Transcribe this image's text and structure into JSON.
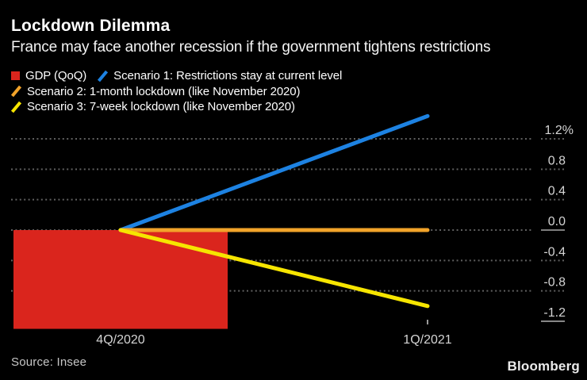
{
  "header": {
    "title": "Lockdown Dilemma",
    "subtitle": "France may face another recession if the government tightens restrictions"
  },
  "legend": [
    {
      "label": "GDP (QoQ)",
      "marker": "square-icon",
      "color": "#da251d",
      "row": 1
    },
    {
      "label": "Scenario 1: Restrictions stay at current level",
      "marker": "slash-icon",
      "color": "#1d82e2",
      "row": 1
    },
    {
      "label": "Scenario 2: 1-month lockdown (like November 2020)",
      "marker": "slash-icon",
      "color": "#f2a32a",
      "row": 2
    },
    {
      "label": "Scenario 3: 7-week lockdown (like November 2020)",
      "marker": "slash-icon",
      "color": "#f6e500",
      "row": 3
    }
  ],
  "chart_data": {
    "type": "bar+line",
    "title": "Lockdown Dilemma",
    "subtitle": "France may face another recession if the government tightens restrictions",
    "categories": [
      "4Q/2020",
      "1Q/2021"
    ],
    "x_tick_marks": [
      false,
      true
    ],
    "bar_series": {
      "name": "GDP (QoQ)",
      "color": "#da251d",
      "values": [
        -1.3,
        null
      ]
    },
    "line_series": [
      {
        "name": "Scenario 1: Restrictions stay at current level",
        "color": "#1d82e2",
        "values": [
          0,
          1.5
        ]
      },
      {
        "name": "Scenario 2: 1-month lockdown (like November 2020)",
        "color": "#f2a32a",
        "values": [
          0,
          0.0
        ]
      },
      {
        "name": "Scenario 3: 7-week lockdown (like November 2020)",
        "color": "#f6e500",
        "values": [
          0,
          -1.0
        ]
      }
    ],
    "y_ticks": [
      {
        "label": "1.2%",
        "value": 1.2,
        "grid": true,
        "solid_margin": false
      },
      {
        "label": "0.8",
        "value": 0.8,
        "grid": true,
        "solid_margin": false
      },
      {
        "label": "0.4",
        "value": 0.4,
        "grid": true,
        "solid_margin": false
      },
      {
        "label": "0.0",
        "value": 0.0,
        "grid": true,
        "solid_margin": true
      },
      {
        "label": "-0.4",
        "value": -0.4,
        "grid": true,
        "solid_margin": false
      },
      {
        "label": "-0.8",
        "value": -0.8,
        "grid": true,
        "solid_margin": false
      },
      {
        "label": "-1.2",
        "value": -1.2,
        "grid": false,
        "solid_margin": true
      }
    ],
    "ylim": [
      -1.35,
      1.55
    ],
    "grid": "dotted-horizontal",
    "legend_position": "top",
    "colors": {
      "background": "#000000",
      "grid_dots": "#606060",
      "axis_solid": "#a8a8a8",
      "tick_labels": "#d4d4d4",
      "text": "#ffffff"
    }
  },
  "footer": {
    "source": "Source: Insee",
    "brand": "Bloomberg"
  }
}
